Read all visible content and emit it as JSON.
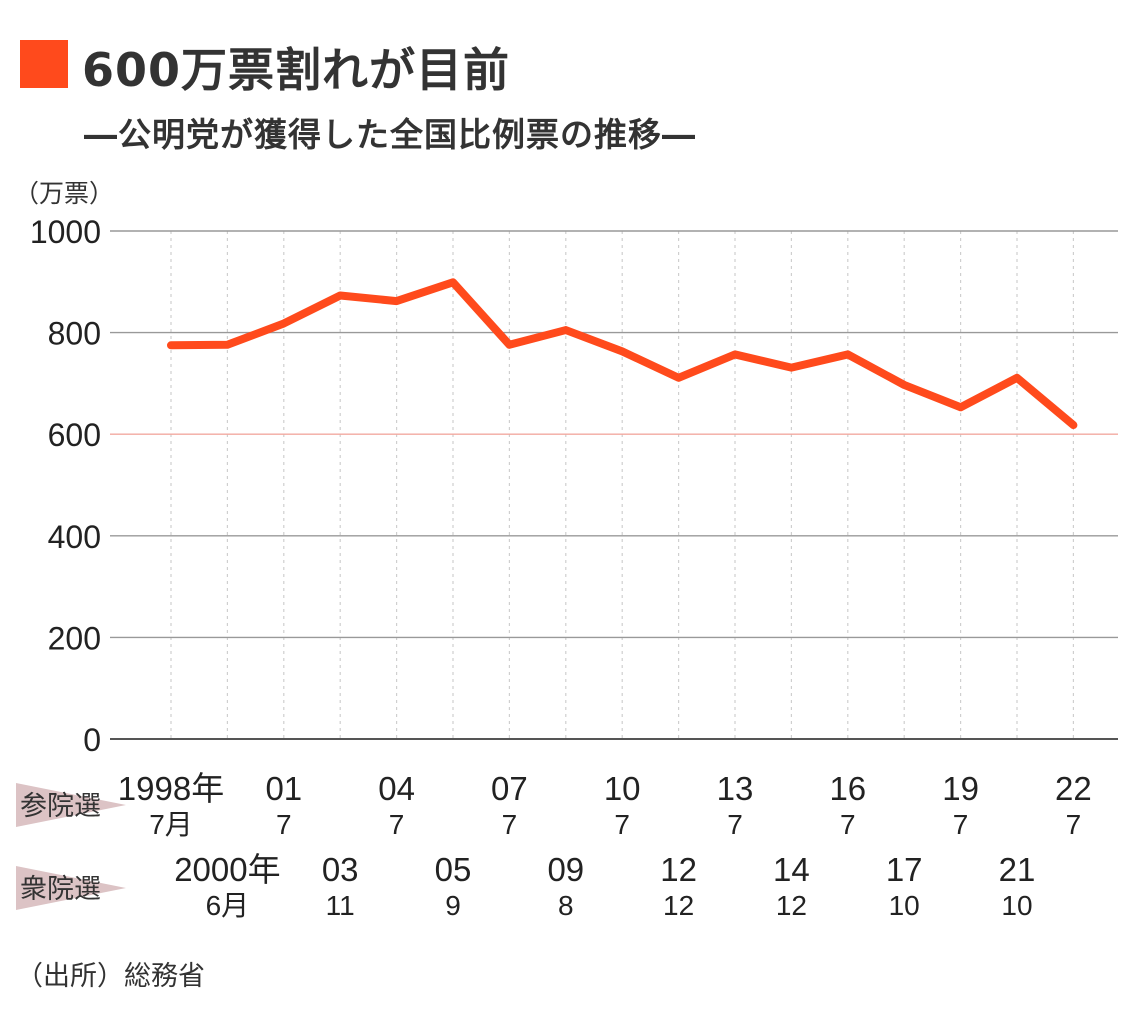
{
  "title": "600万票割れが目前",
  "subtitle": "―公明党が獲得した全国比例票の推移―",
  "source": "（出所）総務省",
  "colors": {
    "accent": "#ff4a1c",
    "line": "#ff4a1c",
    "reference_line": "#f2aaa0",
    "grid": "#999999",
    "tag": "#dcc3c5"
  },
  "chart_data": {
    "type": "line",
    "unit_label": "（万票）",
    "ylim": [
      0,
      1000
    ],
    "yticks": [
      "0",
      "200",
      "400",
      "600",
      "800",
      "1000"
    ],
    "ytick_values": [
      0,
      200,
      400,
      600,
      800,
      1000
    ],
    "reference_value": 600,
    "grid": true,
    "x": [
      "1998/7",
      "2000/6",
      "2001/7",
      "2003/11",
      "2004/7",
      "2005/9",
      "2007/7",
      "2009/8",
      "2010/7",
      "2012/12",
      "2013/7",
      "2014/12",
      "2016/7",
      "2017/10",
      "2019/7",
      "2021/10",
      "2022/7"
    ],
    "series": [
      {
        "values": [
          775,
          776,
          818,
          873,
          862,
          899,
          776,
          805,
          763,
          711,
          757,
          731,
          757,
          697,
          653,
          711,
          618
        ]
      }
    ],
    "row_labels": {
      "upper": "参院選",
      "lower": "衆院選"
    },
    "upper_ticks": [
      {
        "index": 0,
        "year": "1998年",
        "month": "7月"
      },
      {
        "index": 2,
        "year": "01",
        "month": "7"
      },
      {
        "index": 4,
        "year": "04",
        "month": "7"
      },
      {
        "index": 6,
        "year": "07",
        "month": "7"
      },
      {
        "index": 8,
        "year": "10",
        "month": "7"
      },
      {
        "index": 10,
        "year": "13",
        "month": "7"
      },
      {
        "index": 12,
        "year": "16",
        "month": "7"
      },
      {
        "index": 14,
        "year": "19",
        "month": "7"
      },
      {
        "index": 16,
        "year": "22",
        "month": "7"
      }
    ],
    "lower_ticks": [
      {
        "index": 1,
        "year": "2000年",
        "month": "6月"
      },
      {
        "index": 3,
        "year": "03",
        "month": "11"
      },
      {
        "index": 5,
        "year": "05",
        "month": "9"
      },
      {
        "index": 7,
        "year": "09",
        "month": "8"
      },
      {
        "index": 9,
        "year": "12",
        "month": "12"
      },
      {
        "index": 11,
        "year": "14",
        "month": "12"
      },
      {
        "index": 13,
        "year": "17",
        "month": "10"
      },
      {
        "index": 15,
        "year": "21",
        "month": "10"
      }
    ]
  }
}
